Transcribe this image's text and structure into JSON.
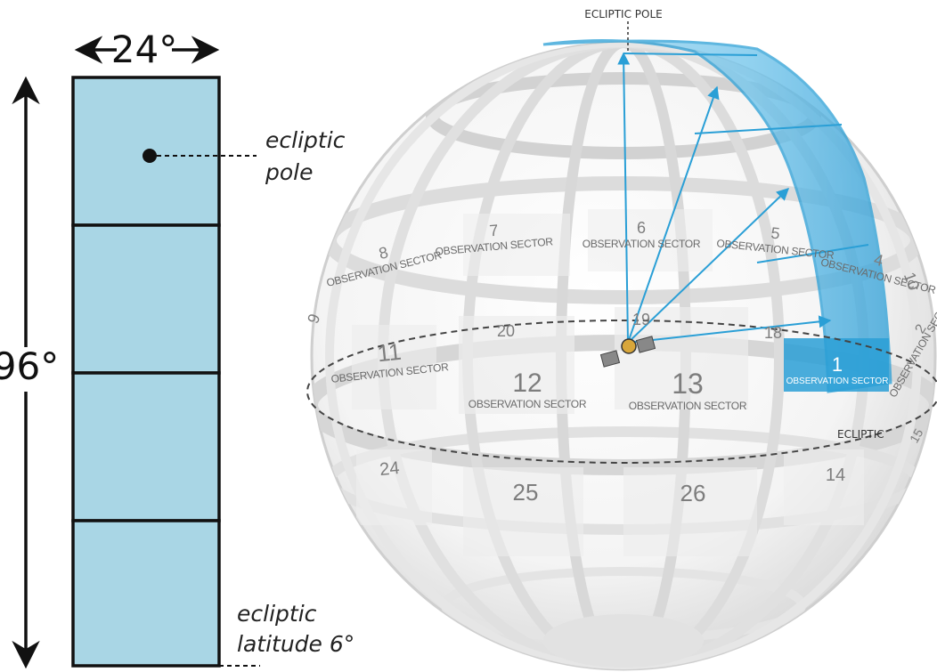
{
  "camera_strip": {
    "width_label": "24°",
    "height_label": "96°",
    "pole_note_line1": "ecliptic",
    "pole_note_line2": "pole",
    "latitude_note_line1": "ecliptic",
    "latitude_note_line2": "latitude 6°",
    "fill_color": "#a9d6e5"
  },
  "sphere": {
    "pole_label": "ECLIPTIC POLE",
    "ecliptic_label": "ECLIPTIC",
    "highlight_color": "#3aaee0",
    "sector_caption": "OBSERVATION SECTOR",
    "sectors_upper": [
      {
        "num": "7",
        "caption": "OBSERVATION SECTOR"
      },
      {
        "num": "6",
        "caption": "OBSERVATION SECTOR"
      },
      {
        "num": "5",
        "caption": "OBSERVATION SECTOR"
      },
      {
        "num": "8",
        "caption": "OBSERVATION SECTOR"
      },
      {
        "num": "4",
        "caption": "OBSERVATION SECTOR"
      }
    ],
    "sectors_middle": [
      {
        "num": "11",
        "caption": "OBSERVATION SECTOR"
      },
      {
        "num": "12",
        "caption": "OBSERVATION SECTOR"
      },
      {
        "num": "13",
        "caption": "OBSERVATION SECTOR"
      },
      {
        "num": "1",
        "caption": "OBSERVATION SECTOR"
      },
      {
        "num": "2",
        "caption": "OBSERVATION SECTOR"
      }
    ],
    "sectors_ghost": [
      {
        "num": "20"
      },
      {
        "num": "19"
      },
      {
        "num": "18"
      },
      {
        "num": "9"
      },
      {
        "num": "10"
      }
    ],
    "sectors_lower": [
      {
        "num": "24"
      },
      {
        "num": "25"
      },
      {
        "num": "26"
      },
      {
        "num": "14"
      },
      {
        "num": "15"
      }
    ]
  }
}
